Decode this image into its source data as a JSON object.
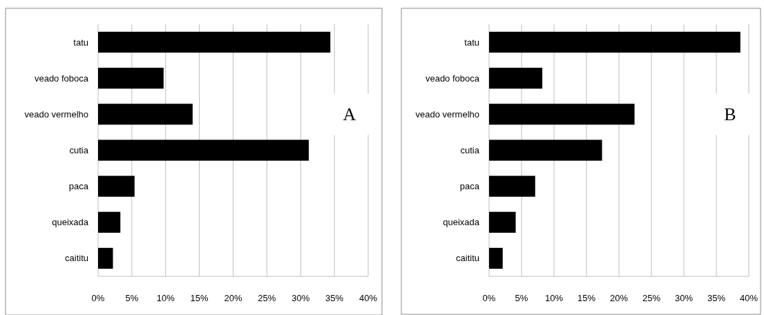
{
  "chart_data": [
    {
      "type": "bar",
      "orientation": "horizontal",
      "categories": [
        "tatu",
        "veado foboca",
        "veado vermelho",
        "cutia",
        "paca",
        "queixada",
        "caititu"
      ],
      "values": [
        34.4,
        9.7,
        14.0,
        31.2,
        5.4,
        3.3,
        2.2
      ],
      "color": "#000000",
      "xlim": [
        0,
        40
      ],
      "xticks": [
        {
          "value": 0,
          "label": "0%"
        },
        {
          "value": 5,
          "label": "5%"
        },
        {
          "value": 10,
          "label": "10%"
        },
        {
          "value": 15,
          "label": "15%"
        },
        {
          "value": 20,
          "label": "20%"
        },
        {
          "value": 25,
          "label": "25%"
        },
        {
          "value": 30,
          "label": "30%"
        },
        {
          "value": 35,
          "label": "35%"
        },
        {
          "value": 40,
          "label": "40%"
        }
      ],
      "grid": "x",
      "annotations": [
        "A"
      ]
    },
    {
      "type": "bar",
      "orientation": "horizontal",
      "categories": [
        "tatu",
        "veado foboca",
        "veado vermelho",
        "cutia",
        "paca",
        "queixada",
        "caititu"
      ],
      "values": [
        38.7,
        8.2,
        22.4,
        17.4,
        7.1,
        4.1,
        2.1
      ],
      "color": "#000000",
      "xlim": [
        0,
        40
      ],
      "xticks": [
        {
          "value": 0,
          "label": "0%"
        },
        {
          "value": 5,
          "label": "5%"
        },
        {
          "value": 10,
          "label": "10%"
        },
        {
          "value": 15,
          "label": "15%"
        },
        {
          "value": 20,
          "label": "20%"
        },
        {
          "value": 25,
          "label": "25%"
        },
        {
          "value": 30,
          "label": "30%"
        },
        {
          "value": 35,
          "label": "35%"
        },
        {
          "value": 40,
          "label": "40%"
        }
      ],
      "grid": "x",
      "annotations": [
        "B"
      ]
    }
  ]
}
